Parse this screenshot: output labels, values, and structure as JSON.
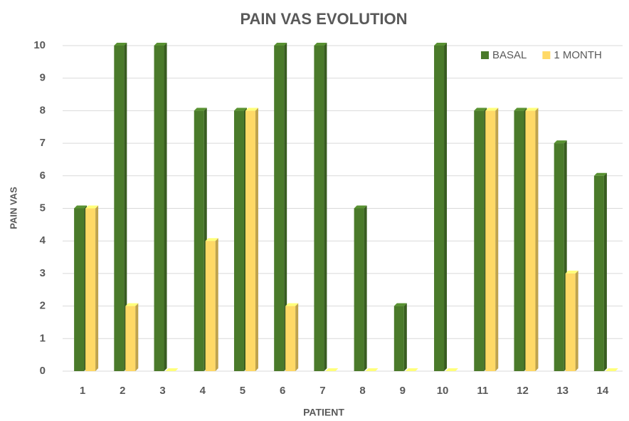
{
  "chart_data": {
    "type": "bar",
    "title": "PAIN VAS EVOLUTION",
    "x_label": "PATIENT",
    "y_label": "PAIN VAS",
    "categories": [
      "1",
      "2",
      "3",
      "4",
      "5",
      "6",
      "7",
      "8",
      "9",
      "10",
      "11",
      "12",
      "13",
      "14"
    ],
    "series": [
      {
        "name": "BASAL",
        "color": "#4a7a2a",
        "values": [
          5,
          10,
          10,
          8,
          8,
          10,
          10,
          5,
          2,
          10,
          8,
          8,
          7,
          6
        ]
      },
      {
        "name": "1 MONTH",
        "color": "#ffd966",
        "values": [
          5,
          2,
          0,
          4,
          8,
          2,
          0,
          0,
          0,
          0,
          8,
          8,
          3,
          0
        ]
      }
    ],
    "ylim": [
      0,
      10
    ],
    "yticks": [
      0,
      1,
      2,
      3,
      4,
      5,
      6,
      7,
      8,
      9,
      10
    ],
    "grid": true,
    "legend": "top-right"
  }
}
